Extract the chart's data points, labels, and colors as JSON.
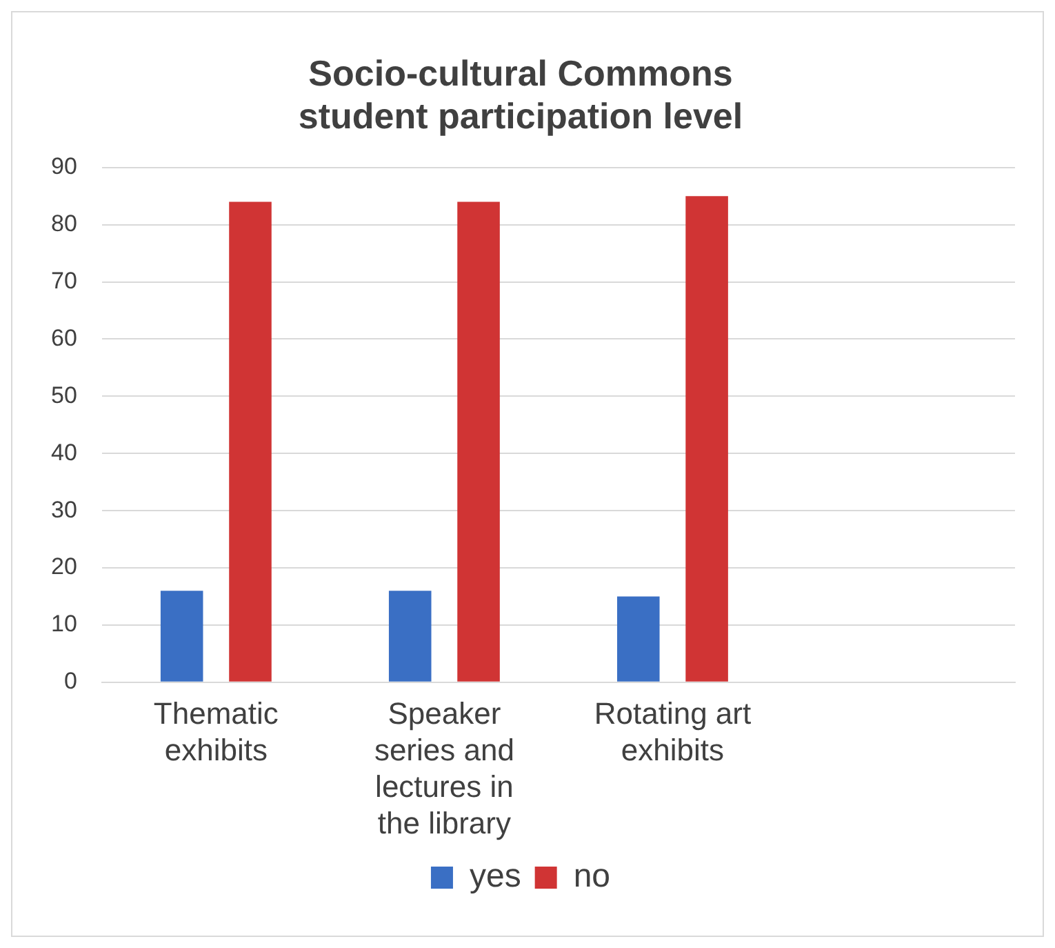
{
  "chart_data": {
    "type": "bar",
    "title": "Socio-cultural Commons\nstudent participation level",
    "categories": [
      "Thematic exhibits",
      "Speaker series and lectures in the library",
      "Rotating art exhibits",
      null
    ],
    "series": [
      {
        "name": "yes",
        "color": "#3a6fc4",
        "values": [
          16,
          16,
          15,
          null
        ]
      },
      {
        "name": "no",
        "color": "#d03434",
        "values": [
          84,
          84,
          85,
          null
        ]
      }
    ],
    "ylim": [
      0,
      90
    ],
    "yticks": [
      0,
      10,
      20,
      30,
      40,
      50,
      60,
      70,
      80,
      90
    ],
    "grid": "y",
    "legend": "bottom"
  }
}
